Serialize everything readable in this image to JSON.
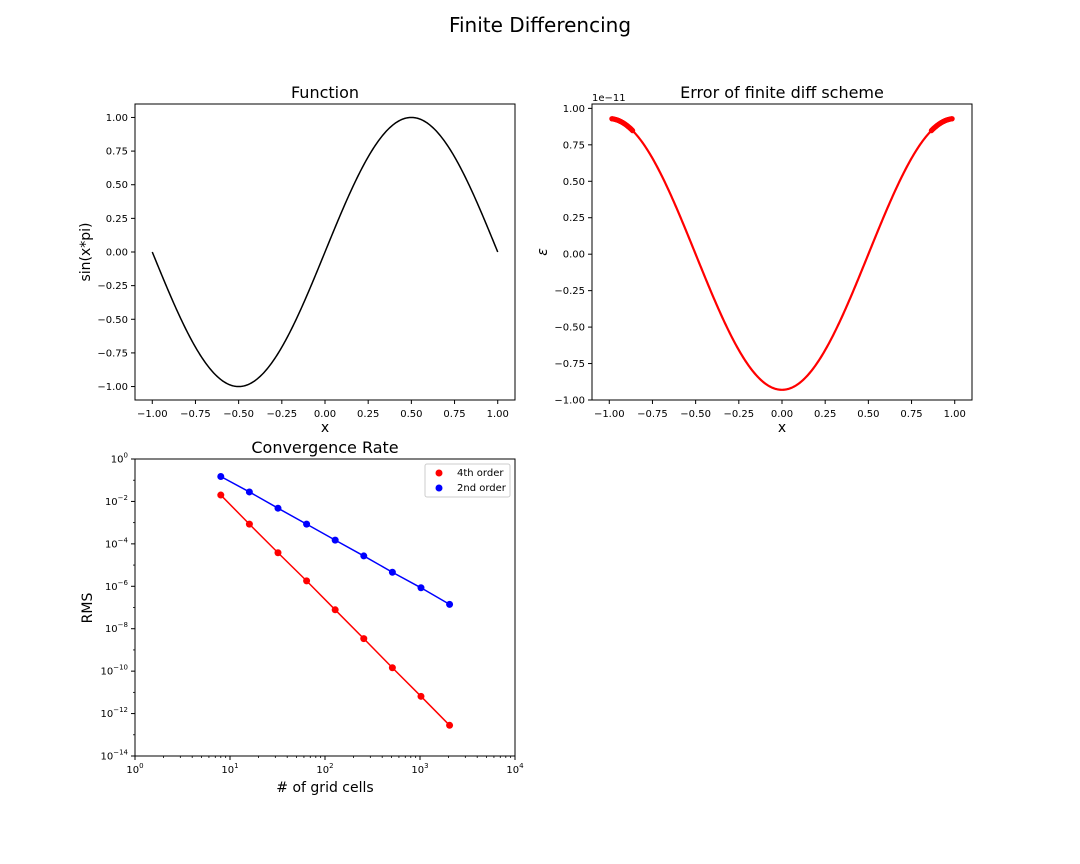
{
  "figure": {
    "suptitle": "Finite Differencing"
  },
  "chart_data": [
    {
      "id": "function",
      "type": "line",
      "title": "Function",
      "xlabel": "x",
      "ylabel": "sin(x*pi)",
      "xlim": [
        -1.1,
        1.1
      ],
      "ylim": [
        -1.1,
        1.1
      ],
      "xticks": [
        -1.0,
        -0.75,
        -0.5,
        -0.25,
        0.0,
        0.25,
        0.5,
        0.75,
        1.0
      ],
      "xtick_labels": [
        "−1.00",
        "−0.75",
        "−0.50",
        "−0.25",
        "0.00",
        "0.25",
        "0.50",
        "0.75",
        "1.00"
      ],
      "yticks": [
        -1.0,
        -0.75,
        -0.5,
        -0.25,
        0.0,
        0.25,
        0.5,
        0.75,
        1.0
      ],
      "ytick_labels": [
        "−1.00",
        "−0.75",
        "−0.50",
        "−0.25",
        "0.00",
        "0.25",
        "0.50",
        "0.75",
        "1.00"
      ],
      "grid": false,
      "series": [
        {
          "function": "sin(pi*x)",
          "x_range": [
            -1.0,
            1.0
          ],
          "color": "#000000"
        }
      ]
    },
    {
      "id": "error",
      "type": "line",
      "title": "Error of finite diff scheme",
      "xlabel": "x",
      "ylabel": "ε",
      "offset_text": "1e−11",
      "xlim": [
        -1.1,
        1.1
      ],
      "ylim": [
        -1.0,
        1.03
      ],
      "xticks": [
        -1.0,
        -0.75,
        -0.5,
        -0.25,
        0.0,
        0.25,
        0.5,
        0.75,
        1.0
      ],
      "xtick_labels": [
        "−1.00",
        "−0.75",
        "−0.50",
        "−0.25",
        "0.00",
        "0.25",
        "0.50",
        "0.75",
        "1.00"
      ],
      "yticks": [
        -1.0,
        -0.75,
        -0.5,
        -0.25,
        0.0,
        0.25,
        0.5,
        0.75,
        1.0
      ],
      "ytick_labels": [
        "−1.00",
        "−0.75",
        "−0.50",
        "−0.25",
        "0.00",
        "0.25",
        "0.50",
        "0.75",
        "1.00"
      ],
      "grid": false,
      "series": [
        {
          "function": "-0.93*cos(pi*x)",
          "x_range": [
            -0.985,
            0.985
          ],
          "color": "#ff0000"
        }
      ]
    },
    {
      "id": "convergence",
      "type": "scatter",
      "title": "Convergence Rate",
      "xlabel": "# of grid cells",
      "ylabel": "RMS",
      "xscale": "log",
      "yscale": "log",
      "xlim": [
        1,
        10000
      ],
      "ylim": [
        1e-14,
        1
      ],
      "xticks": [
        1,
        10,
        100,
        1000,
        10000
      ],
      "xtick_labels": [
        [
          "10",
          "0"
        ],
        [
          "10",
          "1"
        ],
        [
          "10",
          "2"
        ],
        [
          "10",
          "3"
        ],
        [
          "10",
          "4"
        ]
      ],
      "yticks": [
        1e-14,
        1e-12,
        1e-10,
        1e-08,
        1e-06,
        0.0001,
        0.01,
        1
      ],
      "ytick_labels": [
        [
          "10",
          "−14"
        ],
        [
          "10",
          "−12"
        ],
        [
          "10",
          "−10"
        ],
        [
          "10",
          "−8"
        ],
        [
          "10",
          "−6"
        ],
        [
          "10",
          "−4"
        ],
        [
          "10",
          "−2"
        ],
        [
          "10",
          "0"
        ]
      ],
      "grid": false,
      "legend_position": "top-right",
      "series": [
        {
          "name": "4th order",
          "color": "#ff0000",
          "x": [
            8,
            16,
            32,
            64,
            128,
            256,
            512,
            1024,
            2048
          ],
          "y": [
            0.02,
            0.00085,
            3.8e-05,
            1.8e-06,
            7.8e-08,
            3.4e-09,
            1.45e-10,
            6.5e-12,
            2.8e-13
          ]
        },
        {
          "name": "2nd order",
          "color": "#0000ff",
          "x": [
            8,
            16,
            32,
            64,
            128,
            256,
            512,
            1024,
            2048
          ],
          "y": [
            0.15,
            0.028,
            0.0048,
            0.00085,
            0.00015,
            2.7e-05,
            4.6e-06,
            8.5e-07,
            1.4e-07
          ]
        }
      ]
    }
  ]
}
